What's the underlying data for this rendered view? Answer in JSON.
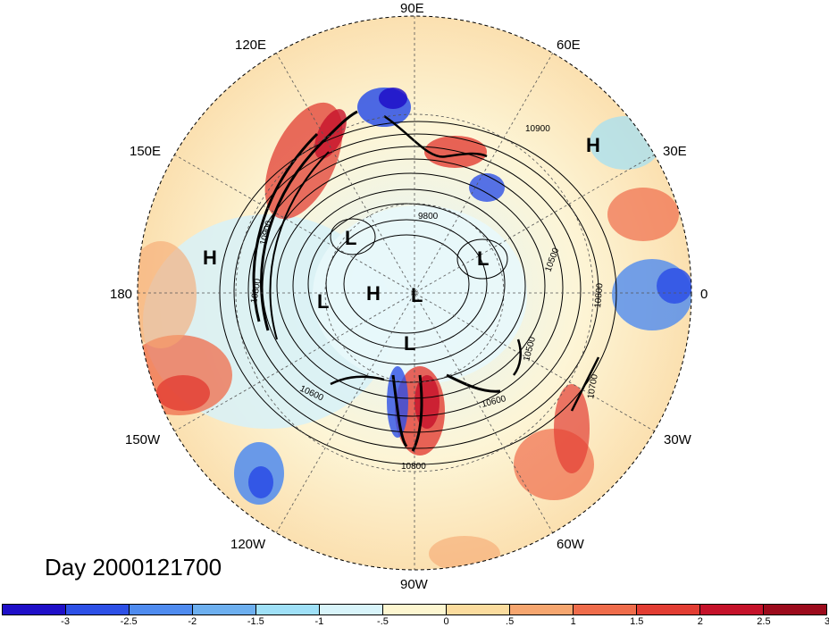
{
  "map": {
    "projection": "north-polar-stereographic",
    "longitude_labels": [
      "90E",
      "60E",
      "30E",
      "0",
      "30W",
      "60W",
      "90W",
      "120W",
      "150W",
      "180",
      "150E",
      "120E"
    ],
    "contour_labels": [
      "10900",
      "9800",
      "10500",
      "10800",
      "10600",
      "10500",
      "10700",
      "10800",
      "10600",
      "10900",
      "10800"
    ],
    "pressure_centers": [
      {
        "label": "H",
        "region": "Europe"
      },
      {
        "label": "H",
        "region": "North Pacific"
      },
      {
        "label": "L",
        "region": "East Siberia"
      },
      {
        "label": "L",
        "region": "Bering Sea"
      },
      {
        "label": "H",
        "region": "Arctic"
      },
      {
        "label": "L",
        "region": "Arctic"
      },
      {
        "label": "L",
        "region": "Hudson Bay"
      },
      {
        "label": "L",
        "region": "Kara Sea"
      }
    ]
  },
  "day_label": "Day 2000121700",
  "colorbar": {
    "colors": [
      "#1f0fc8",
      "#2d50e6",
      "#4f8bef",
      "#6dafef",
      "#9fe0f7",
      "#d8f4fa",
      "#fdf6d0",
      "#fbdc9e",
      "#f6a66f",
      "#ef6c4b",
      "#e23d33",
      "#c5122a",
      "#9c0b1c"
    ],
    "ticks": [
      "-3",
      "-2.5",
      "-2",
      "-1.5",
      "-1",
      "-.5",
      "0",
      ".5",
      "1",
      "1.5",
      "2",
      "2.5",
      "3"
    ]
  }
}
